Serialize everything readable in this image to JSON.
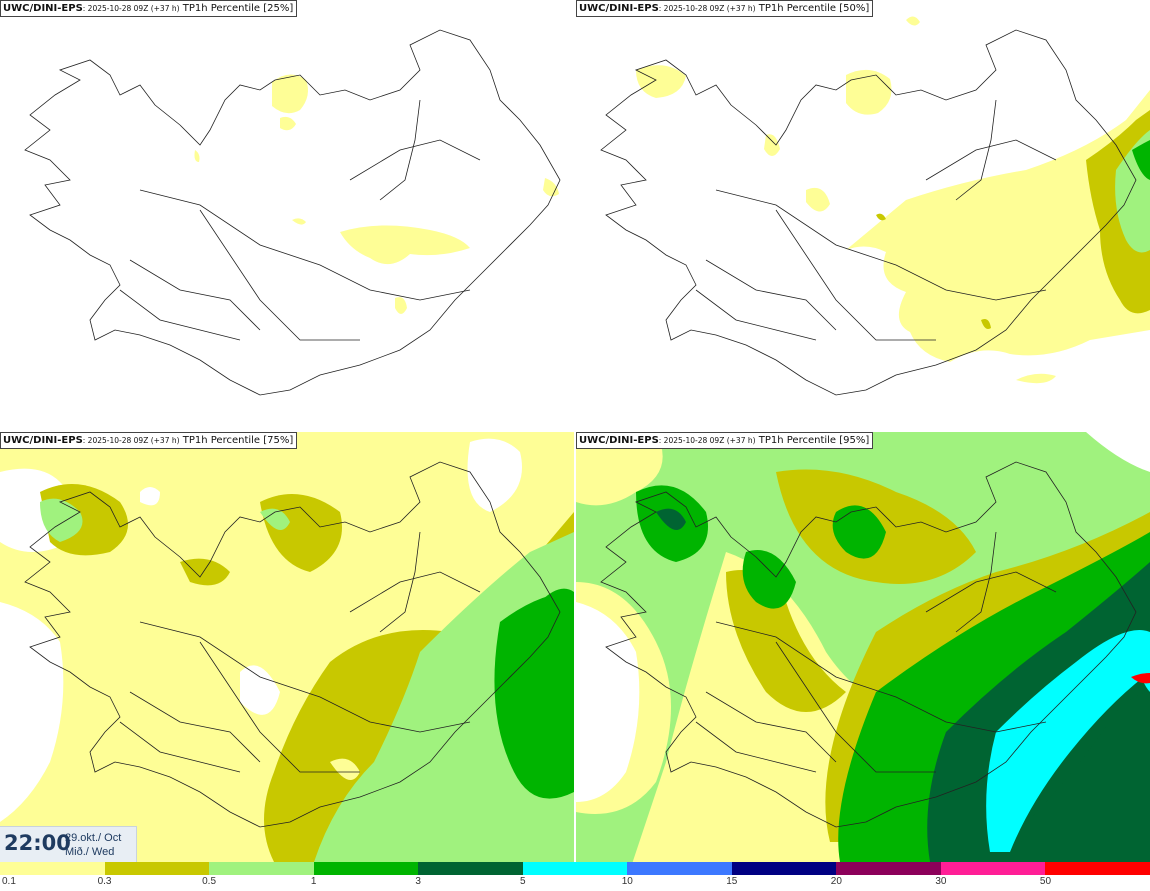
{
  "panels": [
    {
      "model": "UWC/DINI-EPS",
      "run": ": 2025-10-28 09Z (+37 h)",
      "field": "TP1h Percentile",
      "percentile": "[25%]"
    },
    {
      "model": "UWC/DINI-EPS",
      "run": ": 2025-10-28 09Z (+37 h)",
      "field": "TP1h Percentile",
      "percentile": "[50%]"
    },
    {
      "model": "UWC/DINI-EPS",
      "run": ": 2025-10-28 09Z (+37 h)",
      "field": "TP1h Percentile",
      "percentile": "[75%]"
    },
    {
      "model": "UWC/DINI-EPS",
      "run": ": 2025-10-28 09Z (+37 h)",
      "field": "TP1h Percentile",
      "percentile": "[95%]"
    }
  ],
  "time": {
    "clock": "22:00",
    "date_line1": "29.okt./ Oct",
    "date_line2": "Mið./ Wed"
  },
  "legend": {
    "colors": [
      "#fefe96",
      "#c8c800",
      "#a0f27e",
      "#00b400",
      "#006432",
      "#00ffff",
      "#3c78ff",
      "#000082",
      "#8c005a",
      "#ff1e96",
      "#ff0000"
    ],
    "ticks": [
      "0.1",
      "0.3",
      "0.5",
      "1",
      "3",
      "5",
      "10",
      "15",
      "20",
      "30",
      "50"
    ]
  },
  "colors": {
    "light_yellow": "#fefe96",
    "olive": "#c8c800",
    "light_green": "#a0f27e",
    "green": "#00b400",
    "dark_green": "#006432",
    "cyan": "#00ffff",
    "red": "#ff0000",
    "coastline": "#222222"
  }
}
